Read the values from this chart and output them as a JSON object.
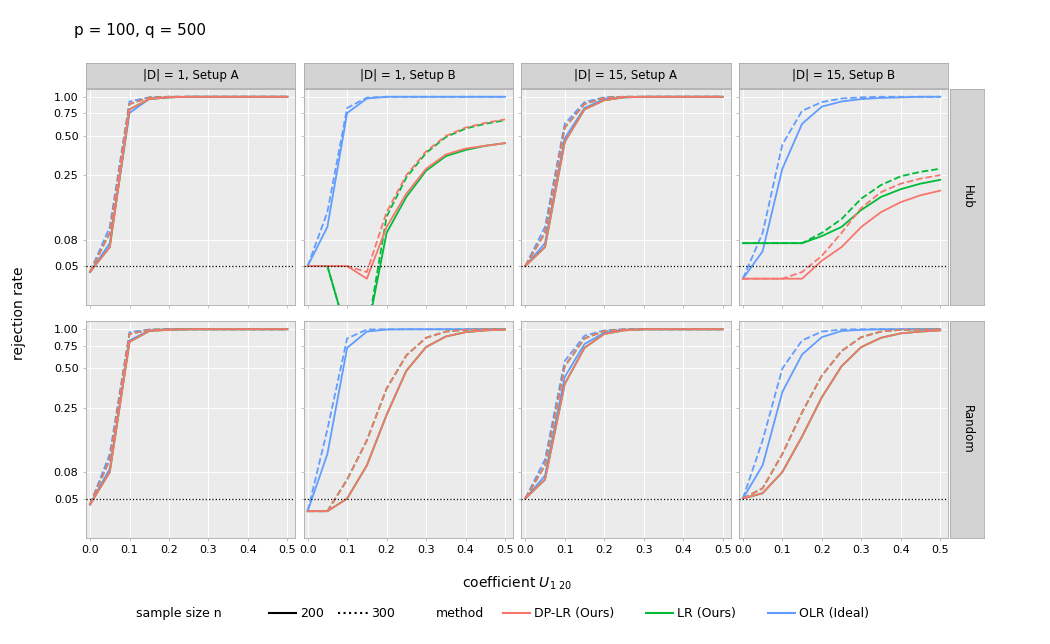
{
  "title_text": "p = 100, q = 500",
  "col_titles": [
    "|D| = 1, Setup A",
    "|D| = 1, Setup B",
    "|D| = 15, Setup A",
    "|D| = 15, Setup B"
  ],
  "row_titles": [
    "Hub",
    "Random"
  ],
  "xlabel": "coefficient U_{1 20}",
  "ylabel": "rejection rate",
  "x_vals": [
    0.0,
    0.05,
    0.1,
    0.15,
    0.2,
    0.25,
    0.3,
    0.35,
    0.4,
    0.45,
    0.5
  ],
  "hline_y": 0.05,
  "colors": {
    "dplr": "#F8766D",
    "lr": "#00BA38",
    "olr": "#619CFF"
  },
  "panels": {
    "hub_d1_setupA": {
      "dplr_200": [
        0.045,
        0.07,
        0.8,
        0.96,
        0.99,
        1.0,
        1.0,
        1.0,
        1.0,
        1.0,
        1.0
      ],
      "dplr_300": [
        0.045,
        0.09,
        0.88,
        0.985,
        1.0,
        1.0,
        1.0,
        1.0,
        1.0,
        1.0,
        1.0
      ],
      "lr_200": [
        0.045,
        0.07,
        0.8,
        0.96,
        0.99,
        1.0,
        1.0,
        1.0,
        1.0,
        1.0,
        1.0
      ],
      "lr_300": [
        0.045,
        0.09,
        0.88,
        0.985,
        1.0,
        1.0,
        1.0,
        1.0,
        1.0,
        1.0,
        1.0
      ],
      "olr_200": [
        0.045,
        0.075,
        0.75,
        0.965,
        0.99,
        1.0,
        1.0,
        1.0,
        1.0,
        1.0,
        1.0
      ],
      "olr_300": [
        0.045,
        0.1,
        0.92,
        0.99,
        1.0,
        1.0,
        1.0,
        1.0,
        1.0,
        1.0,
        1.0
      ]
    },
    "hub_d1_setupB": {
      "dplr_200": [
        0.05,
        0.05,
        0.05,
        0.04,
        0.1,
        0.18,
        0.28,
        0.36,
        0.4,
        0.42,
        0.44
      ],
      "dplr_300": [
        0.05,
        0.05,
        0.05,
        0.045,
        0.13,
        0.25,
        0.38,
        0.5,
        0.58,
        0.63,
        0.67
      ],
      "lr_200": [
        0.05,
        0.05,
        0.015,
        0.015,
        0.09,
        0.17,
        0.27,
        0.35,
        0.39,
        0.42,
        0.44
      ],
      "lr_300": [
        0.05,
        0.05,
        0.015,
        0.015,
        0.12,
        0.24,
        0.37,
        0.49,
        0.57,
        0.62,
        0.66
      ],
      "olr_200": [
        0.05,
        0.1,
        0.75,
        0.97,
        1.0,
        1.0,
        1.0,
        1.0,
        1.0,
        1.0,
        1.0
      ],
      "olr_300": [
        0.05,
        0.13,
        0.82,
        0.985,
        1.0,
        1.0,
        1.0,
        1.0,
        1.0,
        1.0,
        1.0
      ]
    },
    "hub_d15_setupA": {
      "dplr_200": [
        0.05,
        0.07,
        0.45,
        0.8,
        0.94,
        0.99,
        1.0,
        1.0,
        1.0,
        1.0,
        1.0
      ],
      "dplr_300": [
        0.05,
        0.09,
        0.58,
        0.88,
        0.98,
        1.0,
        1.0,
        1.0,
        1.0,
        1.0,
        1.0
      ],
      "lr_200": [
        0.05,
        0.07,
        0.45,
        0.8,
        0.94,
        0.99,
        1.0,
        1.0,
        1.0,
        1.0,
        1.0
      ],
      "lr_300": [
        0.05,
        0.09,
        0.58,
        0.88,
        0.98,
        1.0,
        1.0,
        1.0,
        1.0,
        1.0,
        1.0
      ],
      "olr_200": [
        0.05,
        0.075,
        0.48,
        0.82,
        0.96,
        0.99,
        1.0,
        1.0,
        1.0,
        1.0,
        1.0
      ],
      "olr_300": [
        0.05,
        0.1,
        0.62,
        0.91,
        0.99,
        1.0,
        1.0,
        1.0,
        1.0,
        1.0,
        1.0
      ]
    },
    "hub_d15_setupB": {
      "dplr_200": [
        0.04,
        0.04,
        0.04,
        0.04,
        0.055,
        0.07,
        0.1,
        0.13,
        0.155,
        0.175,
        0.19
      ],
      "dplr_300": [
        0.04,
        0.04,
        0.04,
        0.045,
        0.06,
        0.09,
        0.14,
        0.185,
        0.215,
        0.235,
        0.25
      ],
      "lr_200": [
        0.075,
        0.075,
        0.075,
        0.075,
        0.085,
        0.1,
        0.135,
        0.17,
        0.195,
        0.215,
        0.23
      ],
      "lr_300": [
        0.075,
        0.075,
        0.075,
        0.075,
        0.09,
        0.115,
        0.165,
        0.21,
        0.245,
        0.265,
        0.28
      ],
      "olr_200": [
        0.04,
        0.065,
        0.28,
        0.62,
        0.84,
        0.92,
        0.96,
        0.98,
        0.99,
        1.0,
        1.0
      ],
      "olr_300": [
        0.04,
        0.09,
        0.43,
        0.78,
        0.91,
        0.97,
        0.99,
        1.0,
        1.0,
        1.0,
        1.0
      ]
    },
    "rand_d1_setupA": {
      "dplr_200": [
        0.045,
        0.08,
        0.8,
        0.97,
        0.99,
        1.0,
        1.0,
        1.0,
        1.0,
        1.0,
        1.0
      ],
      "dplr_300": [
        0.045,
        0.1,
        0.92,
        0.99,
        1.0,
        1.0,
        1.0,
        1.0,
        1.0,
        1.0,
        1.0
      ],
      "lr_200": [
        0.045,
        0.08,
        0.8,
        0.97,
        0.99,
        1.0,
        1.0,
        1.0,
        1.0,
        1.0,
        1.0
      ],
      "lr_300": [
        0.045,
        0.1,
        0.92,
        0.99,
        1.0,
        1.0,
        1.0,
        1.0,
        1.0,
        1.0,
        1.0
      ],
      "olr_200": [
        0.045,
        0.085,
        0.82,
        0.98,
        1.0,
        1.0,
        1.0,
        1.0,
        1.0,
        1.0,
        1.0
      ],
      "olr_300": [
        0.045,
        0.11,
        0.95,
        0.995,
        1.0,
        1.0,
        1.0,
        1.0,
        1.0,
        1.0,
        1.0
      ]
    },
    "rand_d1_setupB": {
      "dplr_200": [
        0.04,
        0.04,
        0.05,
        0.09,
        0.22,
        0.48,
        0.73,
        0.88,
        0.95,
        0.98,
        0.995
      ],
      "dplr_300": [
        0.04,
        0.04,
        0.07,
        0.14,
        0.35,
        0.63,
        0.86,
        0.96,
        0.99,
        1.0,
        1.0
      ],
      "lr_200": [
        0.04,
        0.04,
        0.05,
        0.09,
        0.22,
        0.48,
        0.73,
        0.88,
        0.95,
        0.98,
        0.995
      ],
      "lr_300": [
        0.04,
        0.04,
        0.07,
        0.14,
        0.35,
        0.63,
        0.86,
        0.96,
        0.99,
        1.0,
        1.0
      ],
      "olr_200": [
        0.04,
        0.11,
        0.72,
        0.96,
        0.995,
        1.0,
        1.0,
        1.0,
        1.0,
        1.0,
        1.0
      ],
      "olr_300": [
        0.04,
        0.17,
        0.85,
        0.995,
        1.0,
        1.0,
        1.0,
        1.0,
        1.0,
        1.0,
        1.0
      ]
    },
    "rand_d15_setupA": {
      "dplr_200": [
        0.05,
        0.07,
        0.38,
        0.72,
        0.92,
        0.98,
        1.0,
        1.0,
        1.0,
        1.0,
        1.0
      ],
      "dplr_300": [
        0.05,
        0.09,
        0.52,
        0.85,
        0.97,
        0.995,
        1.0,
        1.0,
        1.0,
        1.0,
        1.0
      ],
      "lr_200": [
        0.05,
        0.07,
        0.38,
        0.72,
        0.92,
        0.98,
        1.0,
        1.0,
        1.0,
        1.0,
        1.0
      ],
      "lr_300": [
        0.05,
        0.09,
        0.52,
        0.85,
        0.97,
        0.995,
        1.0,
        1.0,
        1.0,
        1.0,
        1.0
      ],
      "olr_200": [
        0.05,
        0.075,
        0.43,
        0.77,
        0.94,
        0.99,
        1.0,
        1.0,
        1.0,
        1.0,
        1.0
      ],
      "olr_300": [
        0.05,
        0.1,
        0.57,
        0.89,
        0.98,
        1.0,
        1.0,
        1.0,
        1.0,
        1.0,
        1.0
      ]
    },
    "rand_d15_setupB": {
      "dplr_200": [
        0.05,
        0.055,
        0.08,
        0.15,
        0.3,
        0.52,
        0.73,
        0.86,
        0.93,
        0.96,
        0.98
      ],
      "dplr_300": [
        0.05,
        0.06,
        0.11,
        0.23,
        0.44,
        0.68,
        0.87,
        0.96,
        0.99,
        0.995,
        1.0
      ],
      "lr_200": [
        0.05,
        0.055,
        0.08,
        0.15,
        0.3,
        0.52,
        0.73,
        0.86,
        0.93,
        0.96,
        0.98
      ],
      "lr_300": [
        0.05,
        0.06,
        0.11,
        0.23,
        0.44,
        0.68,
        0.87,
        0.96,
        0.99,
        0.995,
        1.0
      ],
      "olr_200": [
        0.05,
        0.09,
        0.33,
        0.64,
        0.87,
        0.97,
        0.99,
        1.0,
        1.0,
        1.0,
        1.0
      ],
      "olr_300": [
        0.05,
        0.14,
        0.5,
        0.82,
        0.96,
        0.995,
        1.0,
        1.0,
        1.0,
        1.0,
        1.0
      ]
    }
  },
  "yticks": [
    0.05,
    0.08,
    0.25,
    0.5,
    0.75,
    1.0
  ],
  "ytick_labels": [
    "0.05",
    "0.08",
    "0.25",
    "0.50",
    "0.75",
    "1.00"
  ],
  "xticks": [
    0.0,
    0.1,
    0.2,
    0.3,
    0.4,
    0.5
  ],
  "xlim": [
    -0.01,
    0.52
  ],
  "ylim_log": [
    -1.4,
    0.08
  ],
  "bg_color": "#EBEBEB",
  "grid_color": "white",
  "strip_color": "#D3D3D3",
  "spine_color": "#AAAAAA"
}
